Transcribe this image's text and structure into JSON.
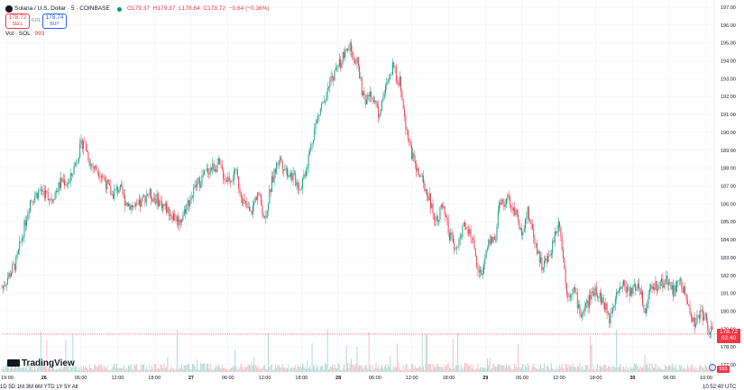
{
  "header": {
    "symbol_title": "Solana / U.S. Dollar · 5 · COINBASE",
    "ohlc": {
      "open": "O179.37",
      "high": "H179.37",
      "low": "L178.64",
      "close": "C178.72",
      "change": "−0.64 (−0.36%)"
    },
    "sell": {
      "price": "178.72",
      "label": "SELL"
    },
    "spread": "0.01",
    "buy": {
      "price": "178.74",
      "label": "BUY"
    },
    "volume_label": "Vol · SOL",
    "volume_value": "993",
    "symbol_icon": "solana-logo-icon",
    "status_icon": "market-open-dot-icon"
  },
  "branding": {
    "logo_text": "TradingView",
    "logo_icon": "tradingview-logo-icon"
  },
  "price_marker": {
    "price": "178.72",
    "countdown": "02:40"
  },
  "volume_marker": "993",
  "bottom": {
    "range_buttons": "1D  5D  1M  3M  6M  YTD  1Y  5Y  All",
    "clock": "10:52:40 UTC"
  },
  "colors": {
    "up": "#089981",
    "down": "#f23645",
    "vol_up": "#a8d8d0",
    "vol_down": "#f7b9bf",
    "grid": "#f0f3fa",
    "text": "#131722"
  },
  "chart_data": {
    "type": "candlestick",
    "y_axis": {
      "ticks": [
        "197.00",
        "196.00",
        "195.00",
        "194.00",
        "193.00",
        "192.00",
        "191.00",
        "190.00",
        "189.00",
        "188.00",
        "187.00",
        "186.00",
        "185.00",
        "184.00",
        "183.00",
        "182.00",
        "181.00",
        "180.00",
        "179.00",
        "178.00",
        "177.00"
      ],
      "range": [
        176.6,
        197.4
      ]
    },
    "x_axis": {
      "labels": [
        "19:00",
        "26",
        "06:00",
        "12:00",
        "18:00",
        "27",
        "06:00",
        "12:00",
        "18:00",
        "28",
        "06:00",
        "12:00",
        "18:00",
        "29",
        "06:00",
        "12:00",
        "18:00",
        "30",
        "06:00",
        "10:00"
      ]
    },
    "close_path": [
      [
        0,
        181.3
      ],
      [
        4,
        182.7
      ],
      [
        8,
        186.2
      ],
      [
        11,
        186.8
      ],
      [
        14,
        186.3
      ],
      [
        17,
        187.3
      ],
      [
        19,
        187.2
      ],
      [
        21,
        188.5
      ],
      [
        23,
        189.6
      ],
      [
        25,
        188.2
      ],
      [
        28,
        187.7
      ],
      [
        31,
        186.5
      ],
      [
        33,
        186.9
      ],
      [
        35,
        186.1
      ],
      [
        38,
        185.7
      ],
      [
        41,
        186.6
      ],
      [
        44,
        186.2
      ],
      [
        47,
        185.6
      ],
      [
        50,
        185.0
      ],
      [
        52,
        185.9
      ],
      [
        55,
        187.1
      ],
      [
        58,
        187.9
      ],
      [
        61,
        188.2
      ],
      [
        63,
        187.4
      ],
      [
        66,
        187.6
      ],
      [
        68,
        186.1
      ],
      [
        70,
        185.4
      ],
      [
        72,
        186.7
      ],
      [
        74,
        185.2
      ],
      [
        76,
        187.2
      ],
      [
        78,
        188.6
      ],
      [
        80,
        187.9
      ],
      [
        82,
        187.5
      ],
      [
        84,
        186.9
      ],
      [
        86,
        188.3
      ],
      [
        88,
        190.2
      ],
      [
        90,
        191.5
      ],
      [
        92,
        192.6
      ],
      [
        94,
        193.4
      ],
      [
        96,
        194.2
      ],
      [
        98,
        194.7
      ],
      [
        100,
        193.9
      ],
      [
        102,
        191.6
      ],
      [
        104,
        192.3
      ],
      [
        106,
        191.1
      ],
      [
        108,
        192.4
      ],
      [
        110,
        193.6
      ],
      [
        112,
        192.8
      ],
      [
        114,
        190.1
      ],
      [
        116,
        188.2
      ],
      [
        118,
        187.4
      ],
      [
        120,
        186.5
      ],
      [
        122,
        185.1
      ],
      [
        124,
        185.8
      ],
      [
        126,
        184.2
      ],
      [
        128,
        183.5
      ],
      [
        130,
        184.7
      ],
      [
        132,
        184.4
      ],
      [
        134,
        182.3
      ],
      [
        135,
        182.1
      ],
      [
        137,
        183.8
      ],
      [
        139,
        184.2
      ],
      [
        140,
        185.8
      ],
      [
        142,
        186.3
      ],
      [
        144,
        185.8
      ],
      [
        146,
        184.4
      ],
      [
        148,
        185.5
      ],
      [
        150,
        184.0
      ],
      [
        152,
        182.5
      ],
      [
        154,
        183.0
      ],
      [
        156,
        184.6
      ],
      [
        157,
        185.0
      ],
      [
        159,
        181.0
      ],
      [
        161,
        181.2
      ],
      [
        163,
        179.8
      ],
      [
        165,
        180.5
      ],
      [
        167,
        181.3
      ],
      [
        169,
        180.6
      ],
      [
        171,
        179.6
      ],
      [
        173,
        181.2
      ],
      [
        175,
        181.5
      ],
      [
        177,
        181.0
      ],
      [
        179,
        181.6
      ],
      [
        181,
        180.2
      ],
      [
        183,
        181.3
      ],
      [
        185,
        181.5
      ],
      [
        187,
        181.8
      ],
      [
        189,
        181.1
      ],
      [
        191,
        181.7
      ],
      [
        193,
        180.4
      ],
      [
        195,
        179.3
      ],
      [
        197,
        180.0
      ],
      [
        199,
        179.0
      ],
      [
        200,
        178.72
      ]
    ],
    "candles_per_step": 3
  }
}
